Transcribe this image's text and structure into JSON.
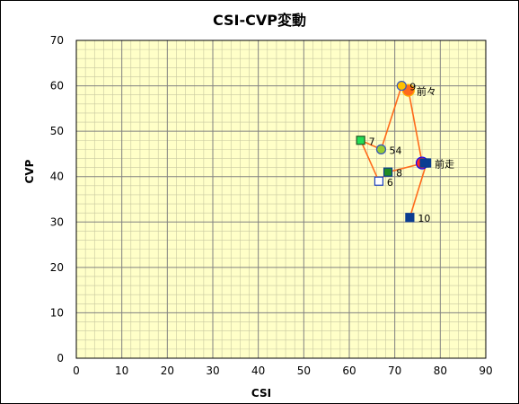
{
  "chart_data": {
    "type": "scatter",
    "title": "CSI-CVP変動",
    "xlabel": "CSI",
    "ylabel": "CVP",
    "xlim": [
      0,
      90
    ],
    "ylim": [
      0,
      70
    ],
    "xticks": [
      0,
      10,
      20,
      30,
      40,
      50,
      60,
      70,
      80,
      90
    ],
    "yticks": [
      0,
      10,
      20,
      30,
      40,
      50,
      60,
      70
    ],
    "grid": true,
    "minor_grid": true,
    "plot_background": "#ffffc8",
    "line_color": "#ff6a1a",
    "path": [
      {
        "x": 73.3,
        "y": 31,
        "label": "10",
        "shape": "square",
        "fill": "#0b3d91",
        "stroke": "#0b3d91"
      },
      {
        "x": 77,
        "y": 43,
        "label": "前走",
        "shape": "square",
        "fill": "#0b3d91",
        "stroke": "#0b3d91"
      },
      {
        "x": 76,
        "y": 43,
        "label": "",
        "shape": "circle-large",
        "fill": "#ff2a2a",
        "stroke": "#0000ff"
      },
      {
        "x": 73,
        "y": 59,
        "label": "前々",
        "shape": "circle-large",
        "fill": "#ff6a1a",
        "stroke": "#ffb000"
      },
      {
        "x": 71.5,
        "y": 60,
        "label": "9",
        "shape": "circle",
        "fill": "#ffc000",
        "stroke": "#3355bb"
      },
      {
        "x": 67,
        "y": 46,
        "label": "54",
        "shape": "circle",
        "fill": "#9acd32",
        "stroke": "#3355bb"
      },
      {
        "x": 62.5,
        "y": 48,
        "label": "7",
        "shape": "square",
        "fill": "#22dd55",
        "stroke": "#225522"
      },
      {
        "x": 66.5,
        "y": 39,
        "label": "6",
        "shape": "square-open",
        "fill": "#ffffff",
        "stroke": "#1a3fbf"
      },
      {
        "x": 68.5,
        "y": 41,
        "label": "8",
        "shape": "square",
        "fill": "#228b22",
        "stroke": "#0b3d91"
      },
      {
        "x": 76.5,
        "y": 43,
        "label": "",
        "shape": "square",
        "fill": "#0b3d91",
        "stroke": "#0b3d91"
      }
    ]
  }
}
